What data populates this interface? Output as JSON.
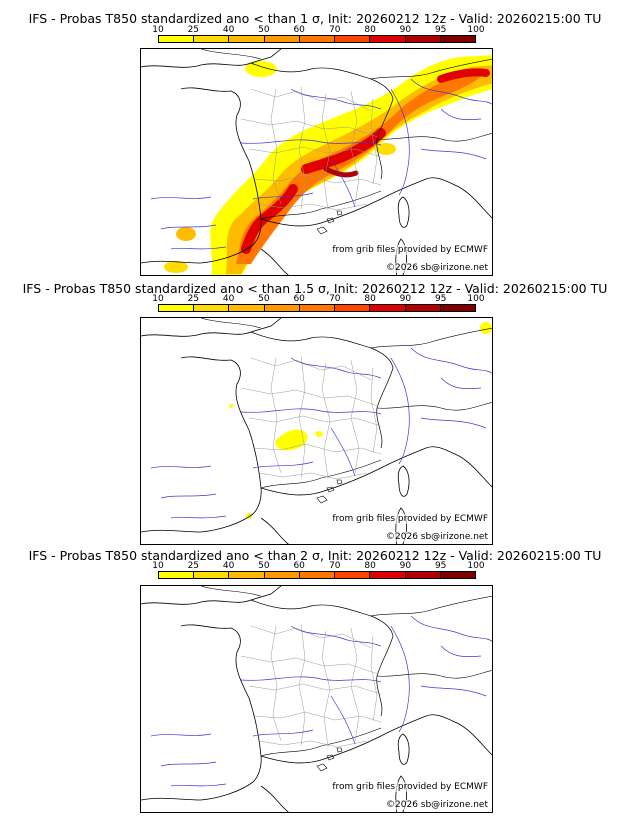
{
  "colorbar": {
    "ticks": [
      "10",
      "25",
      "40",
      "50",
      "60",
      "70",
      "80",
      "90",
      "95",
      "100"
    ],
    "colors": [
      "#ffff00",
      "#ffdd00",
      "#ffbb00",
      "#ff9900",
      "#ff7700",
      "#ff4400",
      "#e00000",
      "#b00000",
      "#800000"
    ]
  },
  "panels": [
    {
      "title": "IFS - Probas T850  standardized ano < than 1 σ, Init: 20260212 12z - Valid: 20260215:00 TU",
      "credit_source": "from grib files provided by ECMWF",
      "credit_copy": "©2026 sb@irizone.net"
    },
    {
      "title": "IFS - Probas T850  standardized ano < than 1.5 σ, Init: 20260212 12z - Valid: 20260215:00 TU",
      "credit_source": "from grib files provided by ECMWF",
      "credit_copy": "©2026 sb@irizone.net"
    },
    {
      "title": "IFS - Probas T850  standardized ano < than 2 σ, Init: 20260212 12z - Valid: 20260215:00 TU",
      "credit_source": "from grib files provided by ECMWF",
      "credit_copy": "©2026 sb@irizone.net"
    }
  ],
  "colors": {
    "coast": "#000000",
    "rivers": "#3a3acc",
    "departments": "#999999"
  }
}
